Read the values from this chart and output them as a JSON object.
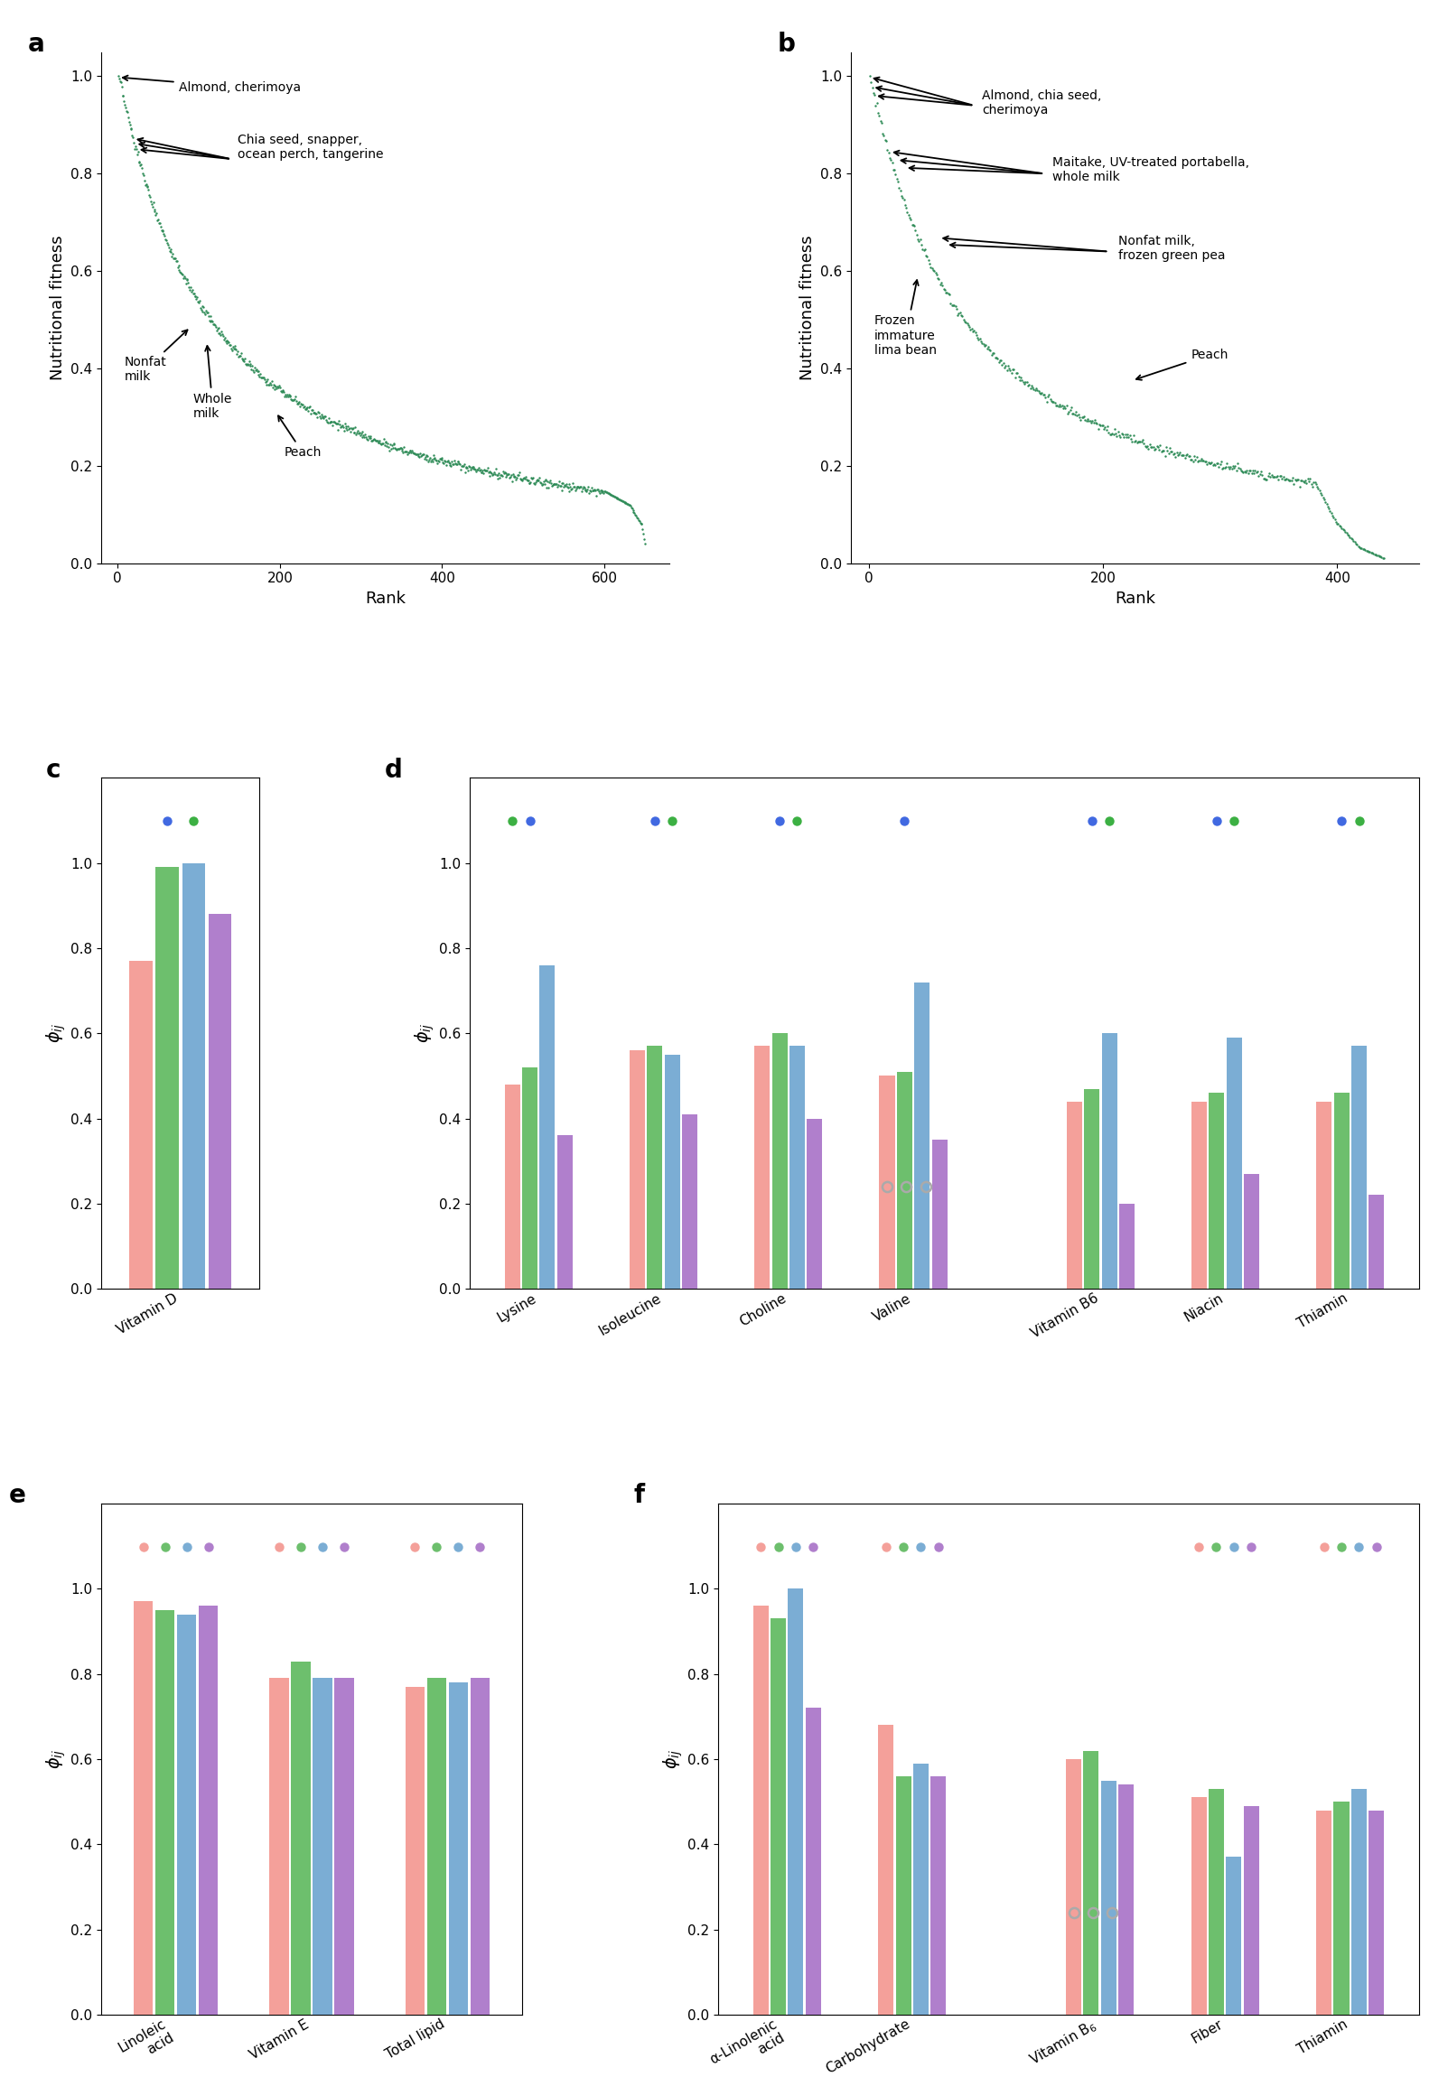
{
  "scatter_color": "#2E8B57",
  "bar_colors": [
    "#F4A09A",
    "#6DBF6D",
    "#7BADD4",
    "#B07FCC"
  ],
  "dot_green": "#3CB043",
  "dot_blue": "#4169E1",
  "panel_a": {
    "n_points": 650,
    "xlim": [
      -20,
      680
    ],
    "ylim": [
      0.0,
      1.05
    ],
    "xticks": [
      0,
      200,
      400,
      600
    ],
    "yticks": [
      0.0,
      0.2,
      0.4,
      0.6,
      0.8,
      1.0
    ],
    "xlabel": "Rank",
    "ylabel": "Nutritional fitness"
  },
  "panel_b": {
    "n_points": 440,
    "xlim": [
      -15,
      470
    ],
    "ylim": [
      0.0,
      1.05
    ],
    "xticks": [
      0,
      200,
      400
    ],
    "yticks": [
      0.0,
      0.2,
      0.4,
      0.6,
      0.8,
      1.0
    ],
    "xlabel": "Rank",
    "ylabel": "Nutritional fitness"
  },
  "panel_c": {
    "values": [
      0.77,
      0.99,
      1.0,
      0.88
    ],
    "dots": [
      false,
      true,
      true,
      false
    ],
    "xtick_label": "Vitamin D",
    "ylim": [
      0.0,
      1.2
    ],
    "yticks": [
      0.0,
      0.2,
      0.4,
      0.6,
      0.8,
      1.0
    ],
    "ylabel": "phi_ij"
  },
  "panel_d": {
    "nutrients": [
      "Lysine",
      "Isoleucine",
      "Choline",
      "Valine",
      "Vitamin B6",
      "Niacin",
      "Thiamin"
    ],
    "values": {
      "Lysine": [
        0.48,
        0.52,
        0.76,
        0.36
      ],
      "Isoleucine": [
        0.56,
        0.57,
        0.55,
        0.41
      ],
      "Choline": [
        0.57,
        0.6,
        0.57,
        0.4
      ],
      "Valine": [
        0.5,
        0.51,
        0.72,
        0.35
      ],
      "Vitamin B6": [
        0.44,
        0.47,
        0.6,
        0.2
      ],
      "Niacin": [
        0.44,
        0.46,
        0.59,
        0.27
      ],
      "Thiamin": [
        0.44,
        0.46,
        0.57,
        0.22
      ]
    },
    "dots": {
      "Lysine": [
        true,
        true,
        false,
        false
      ],
      "Isoleucine": [
        false,
        true,
        true,
        false
      ],
      "Choline": [
        false,
        true,
        true,
        false
      ],
      "Valine": [
        false,
        true,
        false,
        false
      ],
      "Vitamin B6": [
        false,
        true,
        true,
        false
      ],
      "Niacin": [
        false,
        true,
        true,
        false
      ],
      "Thiamin": [
        false,
        true,
        true,
        false
      ]
    },
    "circles_below_group": "Valine",
    "gap_after": "Valine",
    "ylim": [
      0.0,
      1.2
    ],
    "yticks": [
      0.0,
      0.2,
      0.4,
      0.6,
      0.8,
      1.0
    ],
    "ylabel": "phi_ij"
  },
  "panel_e": {
    "nutrients": [
      "Linoleic\nacid",
      "Vitamin E",
      "Total lipid"
    ],
    "values": {
      "Linoleic\nacid": [
        0.97,
        0.95,
        0.94,
        0.96
      ],
      "Vitamin E": [
        0.79,
        0.83,
        0.79,
        0.79
      ],
      "Total lipid": [
        0.77,
        0.79,
        0.78,
        0.79
      ]
    },
    "dots": {
      "Linoleic\nacid": [
        true,
        true,
        true,
        true
      ],
      "Vitamin E": [
        true,
        true,
        true,
        true
      ],
      "Total lipid": [
        true,
        true,
        true,
        true
      ]
    },
    "ylim": [
      0.0,
      1.2
    ],
    "yticks": [
      0.0,
      0.2,
      0.4,
      0.6,
      0.8,
      1.0
    ],
    "ylabel": "phi_ij"
  },
  "panel_f": {
    "nutrients": [
      "alpha-Linolenic\nacid",
      "Carbohydrate",
      "Vitamin B6",
      "Fiber",
      "Thiamin"
    ],
    "values": {
      "alpha-Linolenic\nacid": [
        0.96,
        0.93,
        1.0,
        0.72
      ],
      "Carbohydrate": [
        0.68,
        0.56,
        0.59,
        0.56
      ],
      "Vitamin B6": [
        0.6,
        0.62,
        0.55,
        0.54
      ],
      "Fiber": [
        0.51,
        0.53,
        0.37,
        0.49
      ],
      "Thiamin": [
        0.48,
        0.5,
        0.53,
        0.48
      ]
    },
    "dots": {
      "alpha-Linolenic\nacid": [
        true,
        true,
        true,
        true
      ],
      "Carbohydrate": [
        true,
        true,
        true,
        true
      ],
      "Vitamin B6": [
        false,
        false,
        false,
        false
      ],
      "Fiber": [
        true,
        true,
        true,
        true
      ],
      "Thiamin": [
        true,
        true,
        true,
        true
      ]
    },
    "circles_below_group": "Vitamin B6",
    "gap_after": "Carbohydrate",
    "ylim": [
      0.0,
      1.2
    ],
    "yticks": [
      0.0,
      0.2,
      0.4,
      0.6,
      0.8,
      1.0
    ],
    "ylabel": "phi_ij"
  }
}
